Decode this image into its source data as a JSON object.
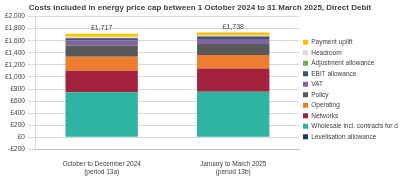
{
  "chart_data": {
    "type": "bar",
    "title": "Costs included in energy price cap between 1 October 2024 to 31 March 2025, Direct Debit",
    "categories": [
      "October to December 2024 (period 13a)",
      "January to March 2025 (period 13b)"
    ],
    "stacked": true,
    "legend": "right",
    "grid": true,
    "data_labels": false,
    "ylim": [
      -200,
      2000
    ],
    "yticks": [
      {
        "value": -200,
        "label": "-£200"
      },
      {
        "value": 0,
        "label": "£0"
      },
      {
        "value": 200,
        "label": "£200"
      },
      {
        "value": 400,
        "label": "£400"
      },
      {
        "value": 600,
        "label": "£600"
      },
      {
        "value": 800,
        "label": "£800"
      },
      {
        "value": 1000,
        "label": "£1,000"
      },
      {
        "value": 1200,
        "label": "£1,200"
      },
      {
        "value": 1400,
        "label": "£1,400"
      },
      {
        "value": 1600,
        "label": "£1,600"
      },
      {
        "value": 1800,
        "label": "£1,800"
      },
      {
        "value": 2000,
        "label": "£2,000"
      }
    ],
    "series": [
      {
        "name": "Levelisation allowance",
        "color": "#1f3864",
        "values": [
          0,
          0
        ]
      },
      {
        "name": "Wholesale incl. contracts for difference",
        "color": "#2fb3a3",
        "values": [
          745,
          755
        ]
      },
      {
        "name": "Networks",
        "color": "#a3233f",
        "values": [
          360,
          385
        ]
      },
      {
        "name": "Operating",
        "color": "#ed7d31",
        "values": [
          230,
          225
        ]
      },
      {
        "name": "Policy",
        "color": "#595959",
        "values": [
          185,
          180
        ]
      },
      {
        "name": "VAT",
        "color": "#8064a2",
        "values": [
          82,
          83
        ]
      },
      {
        "name": "EBIT allowance",
        "color": "#44546a",
        "values": [
          40,
          41
        ]
      },
      {
        "name": "Adjustment allowance",
        "color": "#70ad47",
        "values": [
          5,
          5
        ]
      },
      {
        "name": "Headroom",
        "color": "#d9d9d9",
        "values": [
          20,
          17
        ]
      },
      {
        "name": "Payment uplift",
        "color": "#ffc000",
        "values": [
          50,
          47
        ]
      }
    ],
    "totals": [
      1717,
      1738
    ],
    "total_labels": [
      "£1,717",
      "£1,738"
    ]
  }
}
